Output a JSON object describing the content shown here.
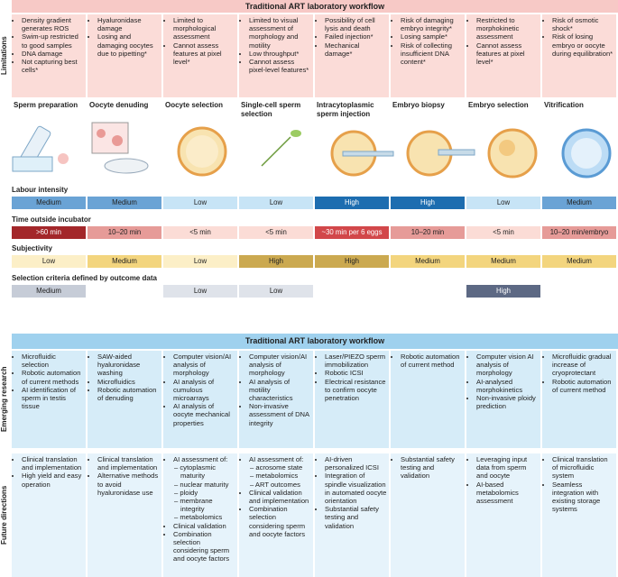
{
  "top_panel": {
    "header": "Traditional ART laboratory workflow",
    "row_label": "Limitations",
    "limitations": [
      [
        "Density gradient generates ROS",
        "Swim-up restricted to good samples",
        "DNA damage",
        "Not capturing best cells*"
      ],
      [
        "Hyaluronidase damage",
        "Losing and damaging oocytes due to pipetting*"
      ],
      [
        "Limited to morphological assessment",
        "Cannot assess features at pixel level*"
      ],
      [
        "Limited to visual assessment of morphology and motility",
        "Low throughput*",
        "Cannot assess pixel-level features*"
      ],
      [
        "Possibility of cell lysis and death",
        "Failed injection*",
        "Mechanical damage*"
      ],
      [
        "Risk of damaging embryo integrity*",
        "Losing sample*",
        "Risk of collecting insufficient DNA content*"
      ],
      [
        "Restricted to morphokinetic assessment",
        "Cannot assess features at pixel level*"
      ],
      [
        "Risk of osmotic shock*",
        "Risk of losing embryo or oocyte during equilibration*"
      ]
    ],
    "steps": [
      "Sperm preparation",
      "Oocyte denuding",
      "Oocyte selection",
      "Single-cell sperm selection",
      "Intracytoplasmic sperm injection",
      "Embryo biopsy",
      "Embryo selection",
      "Vitrification"
    ],
    "rows": [
      {
        "title": "Labour intensity",
        "cells": [
          {
            "text": "Medium",
            "color": "#6aa3d5"
          },
          {
            "text": "Medium",
            "color": "#6aa3d5"
          },
          {
            "text": "Low",
            "color": "#c7e4f6"
          },
          {
            "text": "Low",
            "color": "#c7e4f6"
          },
          {
            "text": "High",
            "color": "#1d6db0"
          },
          {
            "text": "High",
            "color": "#1d6db0"
          },
          {
            "text": "Low",
            "color": "#c7e4f6"
          },
          {
            "text": "Medium",
            "color": "#6aa3d5"
          }
        ]
      },
      {
        "title": "Time outside incubator",
        "cells": [
          {
            "text": ">60 min",
            "color": "#a3272a"
          },
          {
            "text": "10–20 min",
            "color": "#e69b98"
          },
          {
            "text": "<5 min",
            "color": "#fbdcd6"
          },
          {
            "text": "<5 min",
            "color": "#fbdcd6"
          },
          {
            "text": "~30 min per 6 eggs",
            "color": "#d2474a"
          },
          {
            "text": "10–20 min",
            "color": "#e69b98"
          },
          {
            "text": "<5 min",
            "color": "#fbdcd6"
          },
          {
            "text": "10–20 min/embryo",
            "color": "#e69b98"
          }
        ]
      },
      {
        "title": "Subjectivity",
        "cells": [
          {
            "text": "Low",
            "color": "#fcefc7"
          },
          {
            "text": "Medium",
            "color": "#f3d57e"
          },
          {
            "text": "Low",
            "color": "#fcefc7"
          },
          {
            "text": "High",
            "color": "#cba950"
          },
          {
            "text": "High",
            "color": "#cba950"
          },
          {
            "text": "Medium",
            "color": "#f3d57e"
          },
          {
            "text": "Medium",
            "color": "#f3d57e"
          },
          {
            "text": "Medium",
            "color": "#f3d57e"
          }
        ]
      },
      {
        "title": "Selection criteria defined by outcome data",
        "cells": [
          {
            "text": "Medium",
            "color": "#c6ccd7"
          },
          null,
          {
            "text": "Low",
            "color": "#dfe3ea"
          },
          {
            "text": "Low",
            "color": "#dfe3ea"
          },
          null,
          null,
          {
            "text": "High",
            "color": "#5d6984"
          },
          null
        ]
      }
    ]
  },
  "bottom_panel": {
    "header": "Traditional ART laboratory workflow",
    "sections": [
      {
        "row_label": "Emerging research",
        "columns": [
          [
            "Microfluidic selection",
            "Robotic automation of current methods",
            "AI identification of sperm in testis tissue"
          ],
          [
            "SAW-aided hyaluronidase washing",
            "Microfluidics",
            "Robotic automation of denuding"
          ],
          [
            "Computer vision/AI analysis of morphology",
            "AI analysis of cumulous microarrays",
            "AI analysis of oocyte mechanical properties"
          ],
          [
            "Computer vision/AI analysis of morphology",
            "AI analysis of motility characteristics",
            "Non-invasive assessment of DNA integrity"
          ],
          [
            "Laser/PIEZO sperm immobilization",
            "Robotic ICSI",
            "Electrical resistance to confirm oocyte penetration"
          ],
          [
            "Robotic automation of current method"
          ],
          [
            "Computer vision AI analysis of morphology",
            "AI-analysed morphokinetics",
            "Non-invasive ploidy prediction"
          ],
          [
            "Microfluidic gradual increase of cryoprotectant",
            "Robotic automation of current method"
          ]
        ]
      },
      {
        "row_label": "Future directions",
        "columns": [
          [
            "Clinical translation and implementation",
            "High yield and easy operation"
          ],
          [
            "Clinical translation and implementation",
            "Alternative methods to avoid hyaluronidase use"
          ],
          [
            {
              "text": "AI assessment of:",
              "sub": [
                "cytoplasmic maturity",
                "nuclear maturity",
                "ploidy",
                "membrane integrity",
                "metabolomics"
              ]
            },
            "Clinical validation",
            "Combination selection considering sperm and oocyte factors"
          ],
          [
            {
              "text": "AI assessment of:",
              "sub": [
                "acrosome state",
                "metabolomics",
                "ART outcomes"
              ]
            },
            "Clinical validation and implementation",
            "Combination selection considering sperm and oocyte factors"
          ],
          [
            "AI-driven personalized ICSI",
            "Integration of spindle visualization in automated oocyte orientation",
            "Substantial safety testing and validation"
          ],
          [
            "Substantial safety testing and validation"
          ],
          [
            "Leveraging input data from sperm and oocyte",
            "AI-based metabolomics assessment"
          ],
          [
            "Clinical translation of microfluidic system",
            "Seamless integration with existing storage systems"
          ]
        ]
      }
    ]
  }
}
